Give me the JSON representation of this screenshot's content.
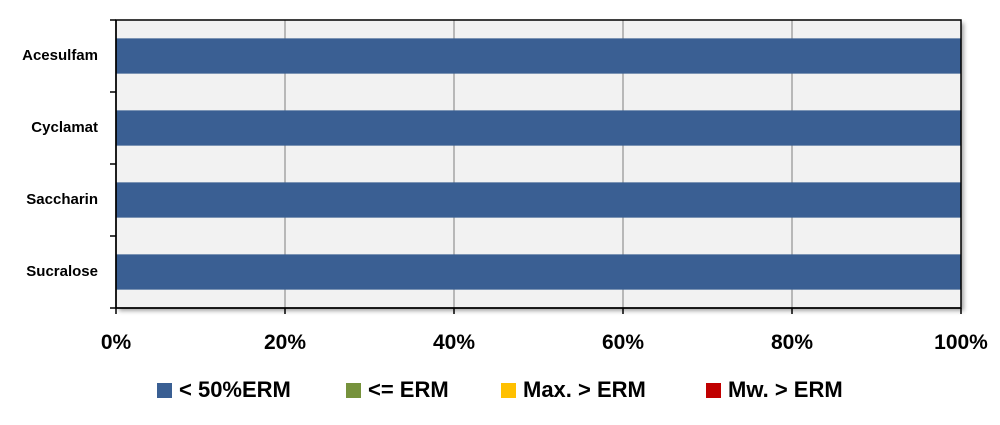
{
  "chart_data": {
    "type": "bar",
    "orientation": "horizontal",
    "stacked": true,
    "percent": true,
    "categories": [
      "Acesulfam",
      "Cyclamat",
      "Saccharin",
      "Sucralose"
    ],
    "series": [
      {
        "name": "< 50%ERM",
        "values": [
          100,
          100,
          100,
          100
        ],
        "color": "#3A5F93"
      },
      {
        "name": "<= ERM",
        "values": [
          0,
          0,
          0,
          0
        ],
        "color": "#76923C"
      },
      {
        "name": "Max. > ERM",
        "values": [
          0,
          0,
          0,
          0
        ],
        "color": "#FFC000"
      },
      {
        "name": "Mw. > ERM",
        "values": [
          0,
          0,
          0,
          0
        ],
        "color": "#C00000"
      }
    ],
    "xlim": [
      0,
      100
    ],
    "xticks": [
      0,
      20,
      40,
      60,
      80,
      100
    ],
    "xtick_labels": [
      "0%",
      "20%",
      "40%",
      "60%",
      "80%",
      "100%"
    ],
    "grid": "vertical",
    "legend": "bottom",
    "title": "",
    "xlabel": "",
    "ylabel": ""
  }
}
